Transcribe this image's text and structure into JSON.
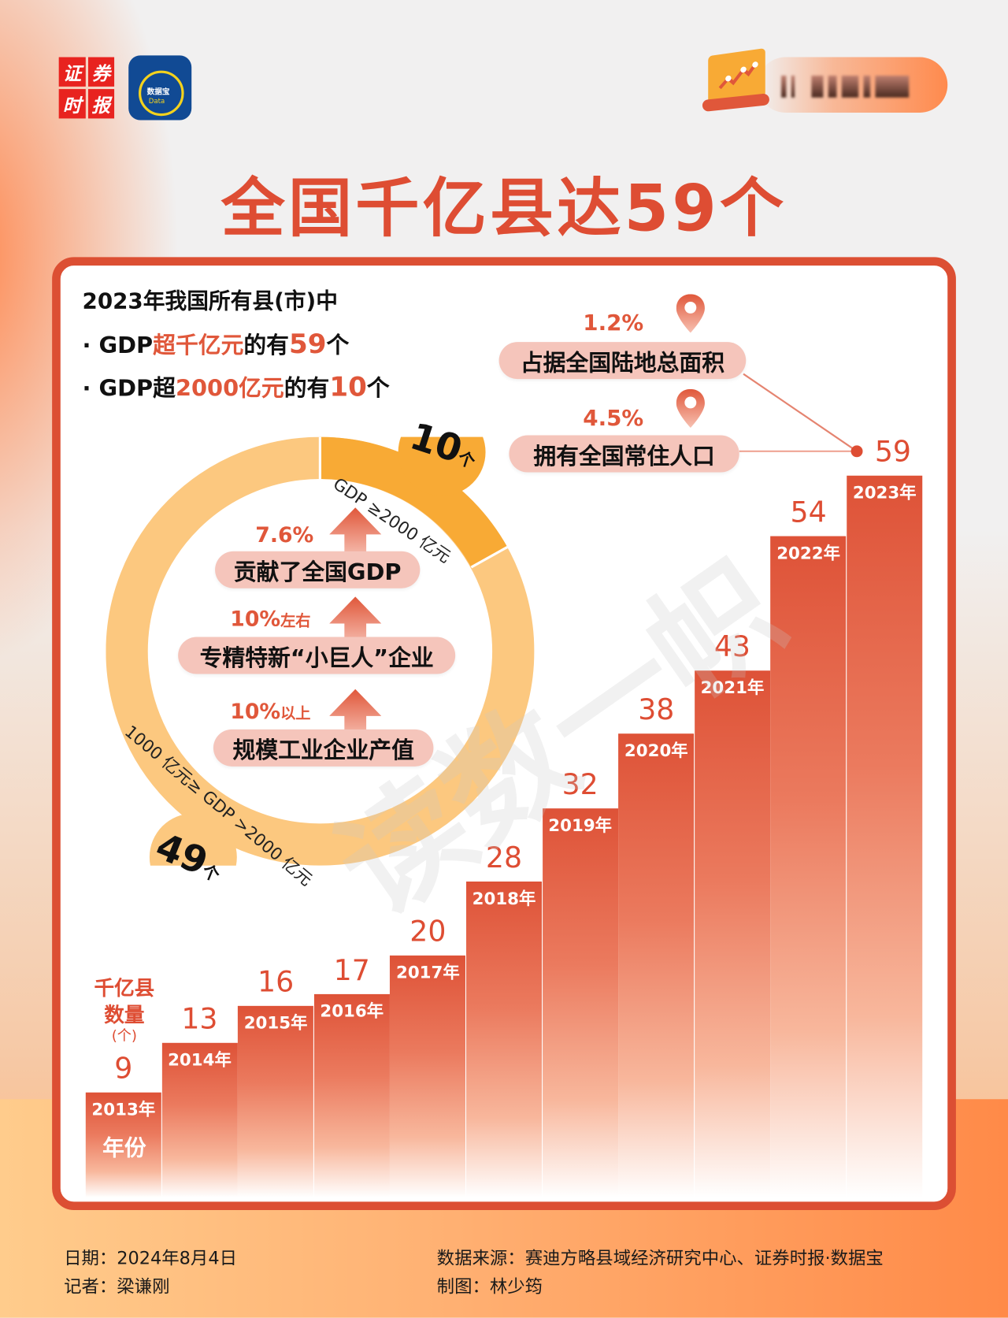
{
  "header": {
    "logo_left_chars": [
      "证",
      "券",
      "时",
      "报"
    ],
    "logo_right_text": "数据宝",
    "logo_right_sub": "Data",
    "badge_text_blurred": "▌▌ ▌▌▌▌▌ ▌▌▌"
  },
  "title": "全国千亿县达59个",
  "intro": {
    "line1": "2023年我国所有县(市)中",
    "line2_prefix": "· GDP",
    "line2_hl": "超千亿元",
    "line2_mid": "的有",
    "line2_num": "59",
    "line2_suffix": "个",
    "line3_prefix": "· GDP超",
    "line3_hl": "2000亿元",
    "line3_mid": "的有",
    "line3_num": "10",
    "line3_suffix": "个"
  },
  "donut": {
    "segments": [
      {
        "label": "GDP ≥2000 亿元",
        "count": "10",
        "unit": "个",
        "color": "#f8aa35"
      },
      {
        "label": "1000 亿元≥ GDP >2000 亿元",
        "count": "49",
        "unit": "个",
        "color": "#fcc87f"
      }
    ],
    "stats": [
      {
        "pct": "7.6%",
        "suffix": "",
        "label": "贡献了全国GDP"
      },
      {
        "pct": "10%",
        "suffix": "左右",
        "label": "专精特新“小巨人”企业"
      },
      {
        "pct": "10%",
        "suffix": "以上",
        "label": "规模工业企业产值"
      }
    ]
  },
  "side_stats": [
    {
      "pct": "1.2%",
      "label": "占据全国陆地总面积"
    },
    {
      "pct": "4.5%",
      "label": "拥有全国常住人口"
    }
  ],
  "chart_data": {
    "type": "bar",
    "title": "全国千亿县达59个",
    "xlabel": "年份",
    "ylabel": "千亿县数量(个)",
    "categories": [
      "2013年",
      "2014年",
      "2015年",
      "2016年",
      "2017年",
      "2018年",
      "2019年",
      "2020年",
      "2021年",
      "2022年",
      "2023年"
    ],
    "values": [
      9,
      13,
      16,
      17,
      20,
      28,
      32,
      38,
      43,
      54,
      59
    ],
    "ylim": [
      0,
      59
    ],
    "grid": false,
    "legend": "none",
    "bar_color": "#de5237"
  },
  "axis": {
    "y_label_line1": "千亿县",
    "y_label_line2": "数量",
    "y_unit": "(个)",
    "x_label": "年份"
  },
  "watermark": "读数一帜",
  "footer": {
    "date_label": "日期：",
    "date": "2024年8月4日",
    "reporter_label": "记者：",
    "reporter": "梁谦刚",
    "source_label": "数据来源：",
    "source": "赛迪方略县域经济研究中心、证券时报·数据宝",
    "designer_label": "制图：",
    "designer": "林少筠"
  }
}
